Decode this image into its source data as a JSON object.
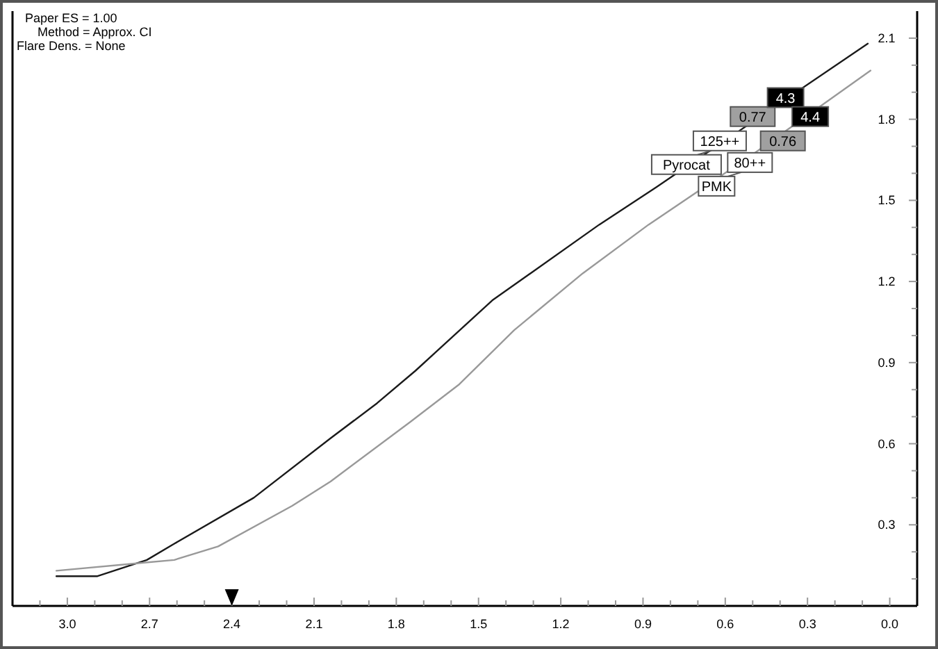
{
  "chart_data": {
    "type": "line",
    "xlim": [
      3.2,
      -0.1
    ],
    "ylim": [
      0,
      2.2
    ],
    "xticks": [
      {
        "value": 3.1,
        "label": null
      },
      {
        "value": 3.0,
        "label": "3.0"
      },
      {
        "value": 2.9,
        "label": null
      },
      {
        "value": 2.8,
        "label": null
      },
      2.7,
      {
        "value": 2.6,
        "label": null
      },
      {
        "value": 2.5,
        "label": null
      },
      2.4,
      {
        "value": 2.3,
        "label": null
      },
      {
        "value": 2.2,
        "label": null
      },
      2.1,
      {
        "value": 2.0,
        "label": null
      },
      {
        "value": 1.9,
        "label": null
      },
      1.8,
      {
        "value": 1.7,
        "label": null
      },
      {
        "value": 1.6,
        "label": null
      },
      1.5,
      {
        "value": 1.4,
        "label": null
      },
      {
        "value": 1.3,
        "label": null
      },
      1.2,
      {
        "value": 1.1,
        "label": null
      },
      {
        "value": 1.0,
        "label": null
      },
      0.9,
      {
        "value": 0.8,
        "label": null
      },
      {
        "value": 0.7,
        "label": null
      },
      0.6,
      {
        "value": 0.5,
        "label": null
      },
      {
        "value": 0.4,
        "label": null
      },
      0.3,
      {
        "value": 0.2,
        "label": null
      },
      {
        "value": 0.1,
        "label": null
      },
      {
        "value": 0.0,
        "label": "0.0"
      }
    ],
    "yticks": [
      {
        "value": 0.1,
        "label": null
      },
      {
        "value": 0.2,
        "label": null
      },
      0.3,
      {
        "value": 0.4,
        "label": null
      },
      {
        "value": 0.5,
        "label": null
      },
      0.6,
      {
        "value": 0.7,
        "label": null
      },
      {
        "value": 0.8,
        "label": null
      },
      0.9,
      {
        "value": 1.0,
        "label": null
      },
      {
        "value": 1.1,
        "label": null
      },
      1.2,
      {
        "value": 1.3,
        "label": null
      },
      {
        "value": 1.4,
        "label": null
      },
      1.5,
      {
        "value": 1.6,
        "label": null
      },
      {
        "value": 1.7,
        "label": null
      },
      1.8,
      {
        "value": 1.9,
        "label": null
      },
      {
        "value": 2.0,
        "label": null
      },
      2.1
    ],
    "series": [
      {
        "name": "Pyrocat",
        "color": "#1a1a1a",
        "x": [
          3.04,
          2.89,
          2.71,
          2.61,
          2.32,
          2.04,
          1.87,
          1.73,
          1.45,
          1.06,
          0.85,
          0.08
        ],
        "values": [
          0.11,
          0.11,
          0.17,
          0.23,
          0.4,
          0.62,
          0.75,
          0.87,
          1.13,
          1.41,
          1.55,
          2.08
        ]
      },
      {
        "name": "PMK",
        "color": "#999999",
        "x": [
          3.04,
          2.72,
          2.61,
          2.45,
          2.18,
          2.04,
          1.75,
          1.57,
          1.37,
          1.12,
          0.88,
          0.5,
          0.07
        ],
        "values": [
          0.13,
          0.16,
          0.17,
          0.22,
          0.37,
          0.46,
          0.68,
          0.82,
          1.02,
          1.23,
          1.41,
          1.67,
          1.98
        ]
      }
    ],
    "annotations": [
      "Paper ES = 1.00",
      "Method = Approx. CI",
      "Flare Dens. = None",
      {
        "text": "125++",
        "x": 0.62,
        "y": 1.72
      },
      {
        "text": "0.77",
        "x": 0.5,
        "y": 1.81
      },
      {
        "text": "4.3",
        "x": 0.38,
        "y": 1.88
      },
      {
        "text": "80++",
        "x": 0.51,
        "y": 1.64
      },
      {
        "text": "0.76",
        "x": 0.39,
        "y": 1.72
      },
      {
        "text": "4.4",
        "x": 0.29,
        "y": 1.81
      }
    ],
    "grid": false,
    "line_style": "solid"
  }
}
